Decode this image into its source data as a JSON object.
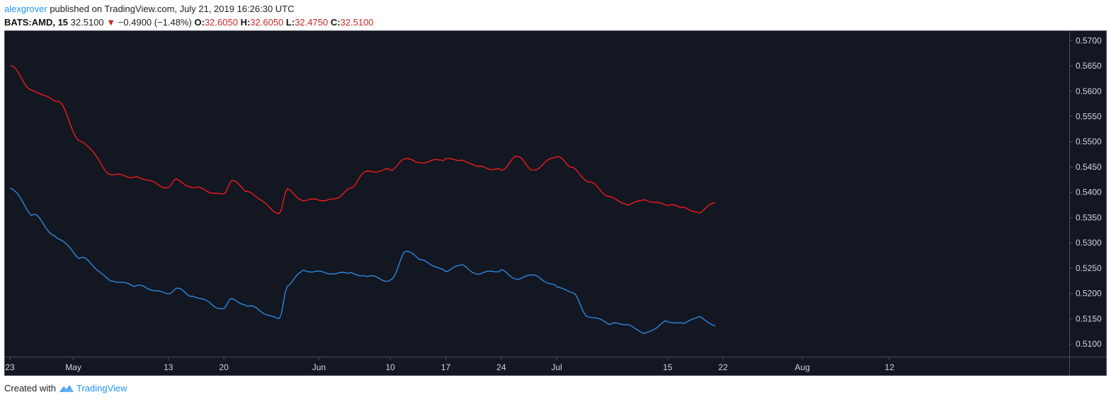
{
  "header": {
    "username": "alexgrover",
    "published_text": " published on TradingView.com, July 21, 2019 16:26:30 UTC",
    "symbol": "BATS:AMD, 15",
    "last": "32.5100",
    "change": "−0.4900 (−1.48%)",
    "open_label": "O:",
    "open": "32.6050",
    "high_label": "H:",
    "high": "32.6050",
    "low_label": "L:",
    "low": "32.4750",
    "close_label": "C:",
    "close": "32.5100",
    "down_arrow": "▼"
  },
  "footer": {
    "created_with": "Created with",
    "brand": "TradingView",
    "brand_icon": "tradingview-logo-icon"
  },
  "colors": {
    "background": "#131722",
    "red_series": "#ff1a1a",
    "blue_series": "#2f8fe8",
    "axis_text": "#d1d4dc",
    "axis_line": "#4a4e59",
    "accent": "#2196f3"
  },
  "chart_data": {
    "type": "line",
    "ylim": [
      0.5075,
      0.572
    ],
    "y_ticks": [
      "0.5700",
      "0.5650",
      "0.5600",
      "0.5550",
      "0.5500",
      "0.5450",
      "0.5400",
      "0.5350",
      "0.5300",
      "0.5250",
      "0.5200",
      "0.5150",
      "0.5100"
    ],
    "x_ticks": [
      "23",
      "May",
      "13",
      "20",
      "Jun",
      "10",
      "17",
      "24",
      "Jul",
      "15",
      "22",
      "Aug",
      "12"
    ],
    "grid": false,
    "series": [
      {
        "color": "#ff1a1a",
        "x": [
          "Apr 23",
          "Apr 26",
          "Apr 29",
          "May 2",
          "May 6",
          "May 9",
          "May 13",
          "May 14",
          "May 16",
          "May 20",
          "May 21",
          "May 23",
          "May 27",
          "May 28",
          "May 30",
          "Jun 3",
          "Jun 5",
          "Jun 7",
          "Jun 10",
          "Jun 12",
          "Jun 14",
          "Jun 17",
          "Jun 19",
          "Jun 21",
          "Jun 24",
          "Jun 26",
          "Jun 28",
          "Jul 1",
          "Jul 3",
          "Jul 5",
          "Jul 8",
          "Jul 10",
          "Jul 12",
          "Jul 15",
          "Jul 17",
          "Jul 19",
          "Jul 21"
        ],
        "values": [
          0.565,
          0.56,
          0.558,
          0.55,
          0.5435,
          0.543,
          0.541,
          0.5425,
          0.541,
          0.5395,
          0.5425,
          0.54,
          0.536,
          0.5405,
          0.5385,
          0.5385,
          0.541,
          0.544,
          0.5445,
          0.5465,
          0.546,
          0.5465,
          0.5465,
          0.545,
          0.5445,
          0.547,
          0.5445,
          0.547,
          0.545,
          0.542,
          0.539,
          0.5375,
          0.5385,
          0.5375,
          0.537,
          0.536,
          0.538
        ]
      },
      {
        "color": "#2f8fe8",
        "x": [
          "Apr 23",
          "Apr 26",
          "Apr 29",
          "May 2",
          "May 6",
          "May 9",
          "May 13",
          "May 14",
          "May 16",
          "May 20",
          "May 21",
          "May 23",
          "May 27",
          "May 28",
          "May 30",
          "Jun 3",
          "Jun 5",
          "Jun 7",
          "Jun 10",
          "Jun 12",
          "Jun 14",
          "Jun 17",
          "Jun 19",
          "Jun 21",
          "Jun 24",
          "Jun 26",
          "Jun 28",
          "Jul 1",
          "Jul 3",
          "Jul 5",
          "Jul 8",
          "Jul 10",
          "Jul 12",
          "Jul 15",
          "Jul 17",
          "Jul 19",
          "Jul 21"
        ],
        "values": [
          0.541,
          0.5355,
          0.531,
          0.527,
          0.5225,
          0.5215,
          0.52,
          0.521,
          0.5195,
          0.517,
          0.519,
          0.5175,
          0.515,
          0.5215,
          0.5245,
          0.524,
          0.524,
          0.5235,
          0.5225,
          0.5285,
          0.5265,
          0.5245,
          0.5255,
          0.524,
          0.5245,
          0.523,
          0.5235,
          0.5215,
          0.52,
          0.5155,
          0.514,
          0.514,
          0.512,
          0.5145,
          0.514,
          0.5155,
          0.5135
        ]
      }
    ]
  }
}
